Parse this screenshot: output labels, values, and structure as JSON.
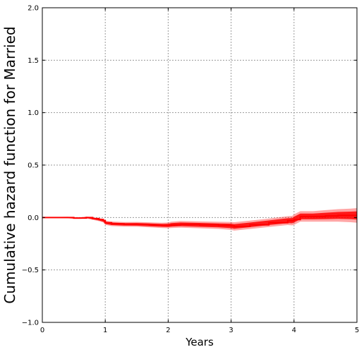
{
  "chart_data": {
    "type": "line",
    "title": "",
    "xlabel": "Years",
    "ylabel": "Cumulative hazard function for Married",
    "xlim": [
      0,
      5
    ],
    "ylim": [
      -1.0,
      2.0
    ],
    "xticks": [
      0,
      1,
      2,
      3,
      4,
      5
    ],
    "xtick_labels": [
      "0",
      "1",
      "2",
      "3",
      "4",
      "5"
    ],
    "yticks": [
      -1.0,
      -0.5,
      0.0,
      0.5,
      1.0,
      1.5,
      2.0
    ],
    "ytick_labels": [
      "−1.0",
      "−0.5",
      "0.0",
      "0.5",
      "1.0",
      "1.5",
      "2.0"
    ],
    "grid": true,
    "legend": "none",
    "series_color": "#ff0000",
    "series": [
      {
        "x": [
          0.0,
          0.1,
          0.2,
          0.3,
          0.4,
          0.5,
          0.6,
          0.7,
          0.8,
          0.9,
          0.97,
          1.0,
          1.1,
          1.3,
          1.5,
          1.7,
          1.9,
          2.0,
          2.05,
          2.2,
          2.5,
          2.8,
          3.0,
          3.05,
          3.3,
          3.6,
          3.9,
          3.97,
          4.0,
          4.1,
          4.3,
          4.5,
          4.7,
          4.9,
          5.0
        ],
        "y": [
          0.0,
          0.0,
          0.0,
          0.0,
          0.0,
          -0.005,
          -0.005,
          0.0,
          -0.01,
          -0.02,
          -0.03,
          -0.05,
          -0.06,
          -0.065,
          -0.065,
          -0.07,
          -0.075,
          -0.075,
          -0.07,
          -0.065,
          -0.07,
          -0.075,
          -0.08,
          -0.085,
          -0.07,
          -0.05,
          -0.03,
          -0.03,
          -0.02,
          0.01,
          0.01,
          0.015,
          0.02,
          0.02,
          0.02
        ],
        "band": [
          0.005,
          0.005,
          0.006,
          0.006,
          0.007,
          0.008,
          0.008,
          0.009,
          0.012,
          0.015,
          0.018,
          0.02,
          0.022,
          0.022,
          0.023,
          0.024,
          0.025,
          0.028,
          0.03,
          0.032,
          0.033,
          0.034,
          0.038,
          0.04,
          0.04,
          0.04,
          0.042,
          0.045,
          0.05,
          0.05,
          0.05,
          0.055,
          0.06,
          0.065,
          0.07
        ]
      }
    ]
  }
}
